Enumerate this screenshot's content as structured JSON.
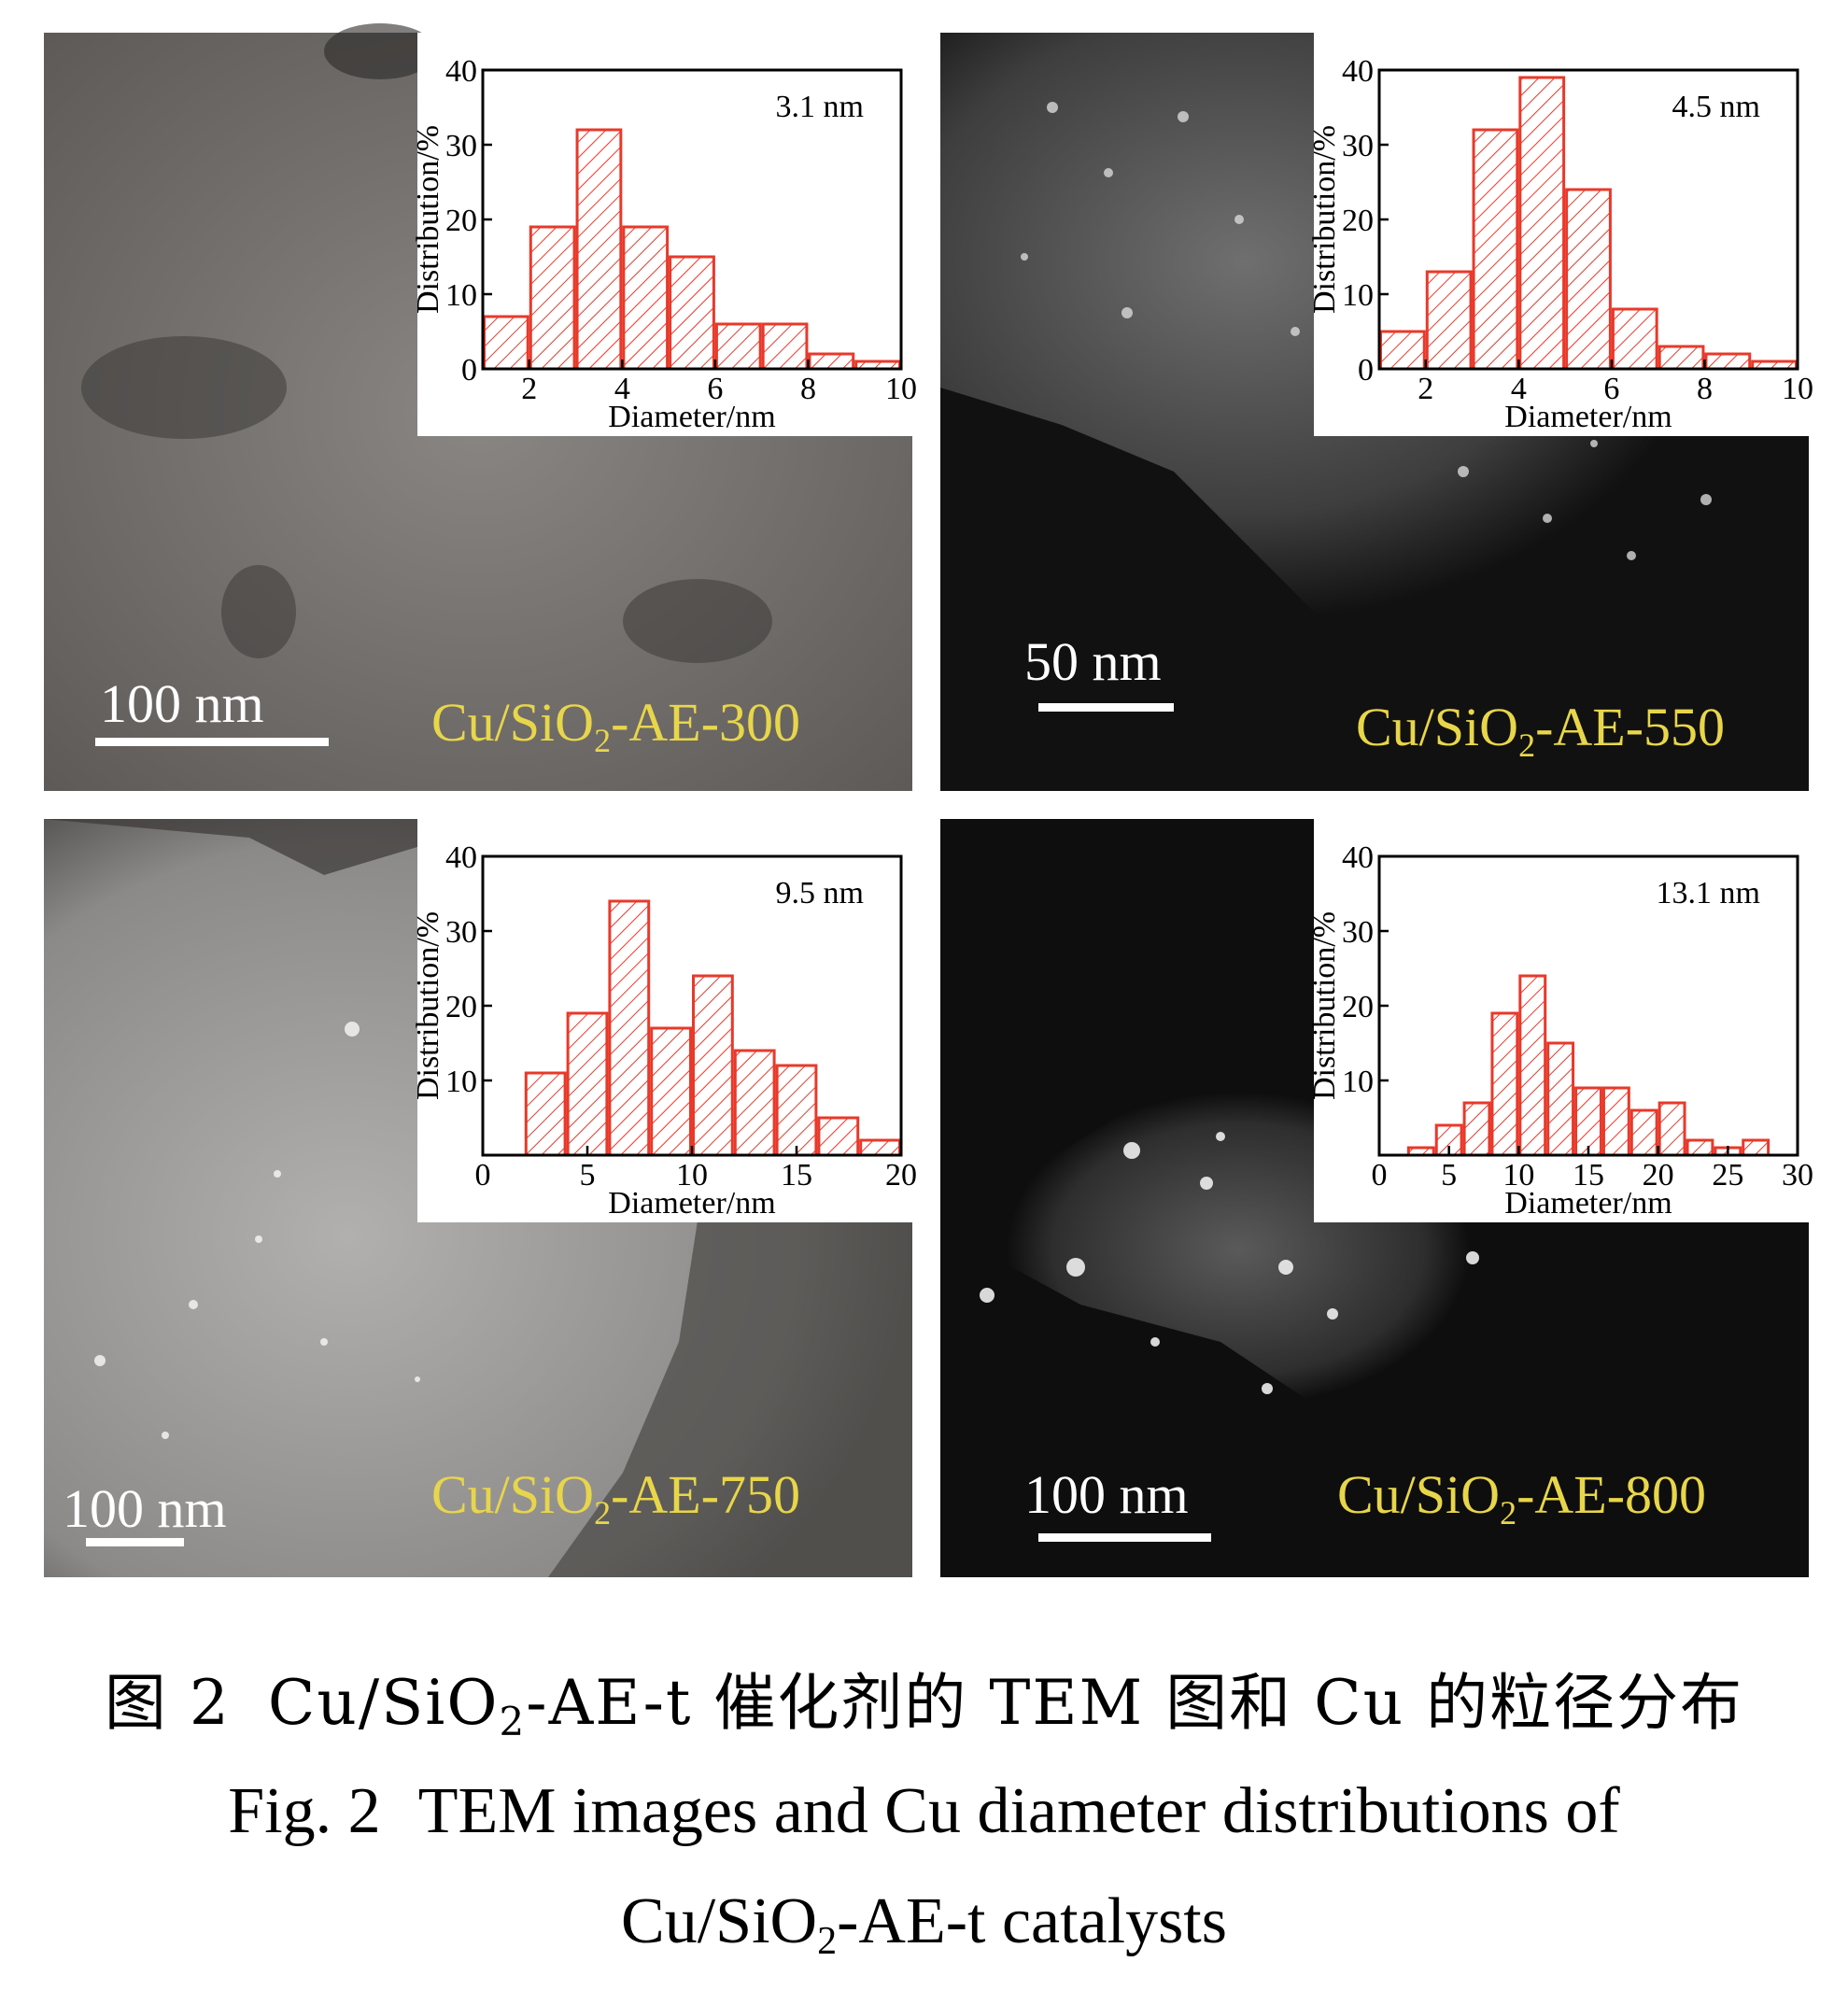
{
  "panels": [
    {
      "id": "AE-300",
      "sample_label": {
        "prefix": "Cu/SiO",
        "sub": "2",
        "suffix": "-AE-300"
      },
      "scale_bar": "100 nm",
      "tem_background": "#7a7673",
      "chart_data": {
        "type": "bar",
        "xlabel": "Diameter/nm",
        "ylabel": "Distribution/%",
        "xlim": [
          1,
          10
        ],
        "ylim": [
          0,
          40
        ],
        "xticks": [
          2,
          4,
          6,
          8,
          10
        ],
        "yticks": [
          0,
          10,
          20,
          30,
          40
        ],
        "x": [
          1.5,
          2.5,
          3.5,
          4.5,
          5.5,
          6.5,
          7.5,
          8.5,
          9.5
        ],
        "values": [
          7,
          19,
          32,
          19,
          15,
          6,
          6,
          2,
          1
        ],
        "bin_width": 1,
        "annotation": "3.1 nm"
      }
    },
    {
      "id": "AE-550",
      "sample_label": {
        "prefix": "Cu/SiO",
        "sub": "2",
        "suffix": "-AE-550"
      },
      "scale_bar": "50 nm",
      "tem_background": "#111111",
      "chart_data": {
        "type": "bar",
        "xlabel": "Diameter/nm",
        "ylabel": "Distribution/%",
        "xlim": [
          1,
          10
        ],
        "ylim": [
          0,
          40
        ],
        "xticks": [
          2,
          4,
          6,
          8,
          10
        ],
        "yticks": [
          0,
          10,
          20,
          30,
          40
        ],
        "x": [
          1.5,
          2.5,
          3.5,
          4.5,
          5.5,
          6.5,
          7.5,
          8.5,
          9.5
        ],
        "values": [
          5,
          13,
          32,
          39,
          24,
          8,
          3,
          2,
          1
        ],
        "bin_width": 1,
        "annotation": "4.5 nm"
      }
    },
    {
      "id": "AE-750",
      "sample_label": {
        "prefix": "Cu/SiO",
        "sub": "2",
        "suffix": "-AE-750"
      },
      "scale_bar": "100 nm",
      "tem_background": "#9a9896",
      "chart_data": {
        "type": "bar",
        "xlabel": "Diameter/nm",
        "ylabel": "Distribution/%",
        "xlim": [
          0,
          20
        ],
        "ylim": [
          0,
          40
        ],
        "xticks": [
          0,
          5,
          10,
          15,
          20
        ],
        "yticks": [
          10,
          20,
          30,
          40
        ],
        "x": [
          3,
          5,
          7,
          9,
          11,
          13,
          15,
          17,
          19
        ],
        "values": [
          11,
          19,
          34,
          17,
          24,
          14,
          12,
          5,
          2
        ],
        "bin_width": 2,
        "annotation": "9.5 nm"
      }
    },
    {
      "id": "AE-800",
      "sample_label": {
        "prefix": "Cu/SiO",
        "sub": "2",
        "suffix": "-AE-800"
      },
      "scale_bar": "100 nm",
      "tem_background": "#0e0e0e",
      "chart_data": {
        "type": "bar",
        "xlabel": "Diameter/nm",
        "ylabel": "Distribution/%",
        "xlim": [
          0,
          30
        ],
        "ylim": [
          0,
          40
        ],
        "xticks": [
          0,
          5,
          10,
          15,
          20,
          25,
          30
        ],
        "yticks": [
          10,
          20,
          30,
          40
        ],
        "x": [
          3,
          5,
          7,
          9,
          11,
          13,
          15,
          17,
          19,
          21,
          23,
          25,
          27
        ],
        "values": [
          1,
          4,
          7,
          19,
          24,
          15,
          9,
          9,
          6,
          7,
          2,
          1,
          2
        ],
        "bin_width": 2,
        "annotation": "13.1 nm"
      }
    }
  ],
  "caption": {
    "cn_fig": "图 2",
    "cn_text_a": "Cu/SiO",
    "cn_sub": "2",
    "cn_text_b": "-AE-t 催化剂的 TEM 图和 Cu 的粒径分布",
    "en_fig": "Fig. 2",
    "en_line1": "TEM images and Cu diameter distributions of",
    "en_line2_a": "Cu/SiO",
    "en_line2_sub": "2",
    "en_line2_b": "-AE-t catalysts"
  },
  "colors": {
    "bar_stroke": "#e8392a",
    "bar_hatch": "#e8392a",
    "label_yellow": "#e8d64a"
  }
}
